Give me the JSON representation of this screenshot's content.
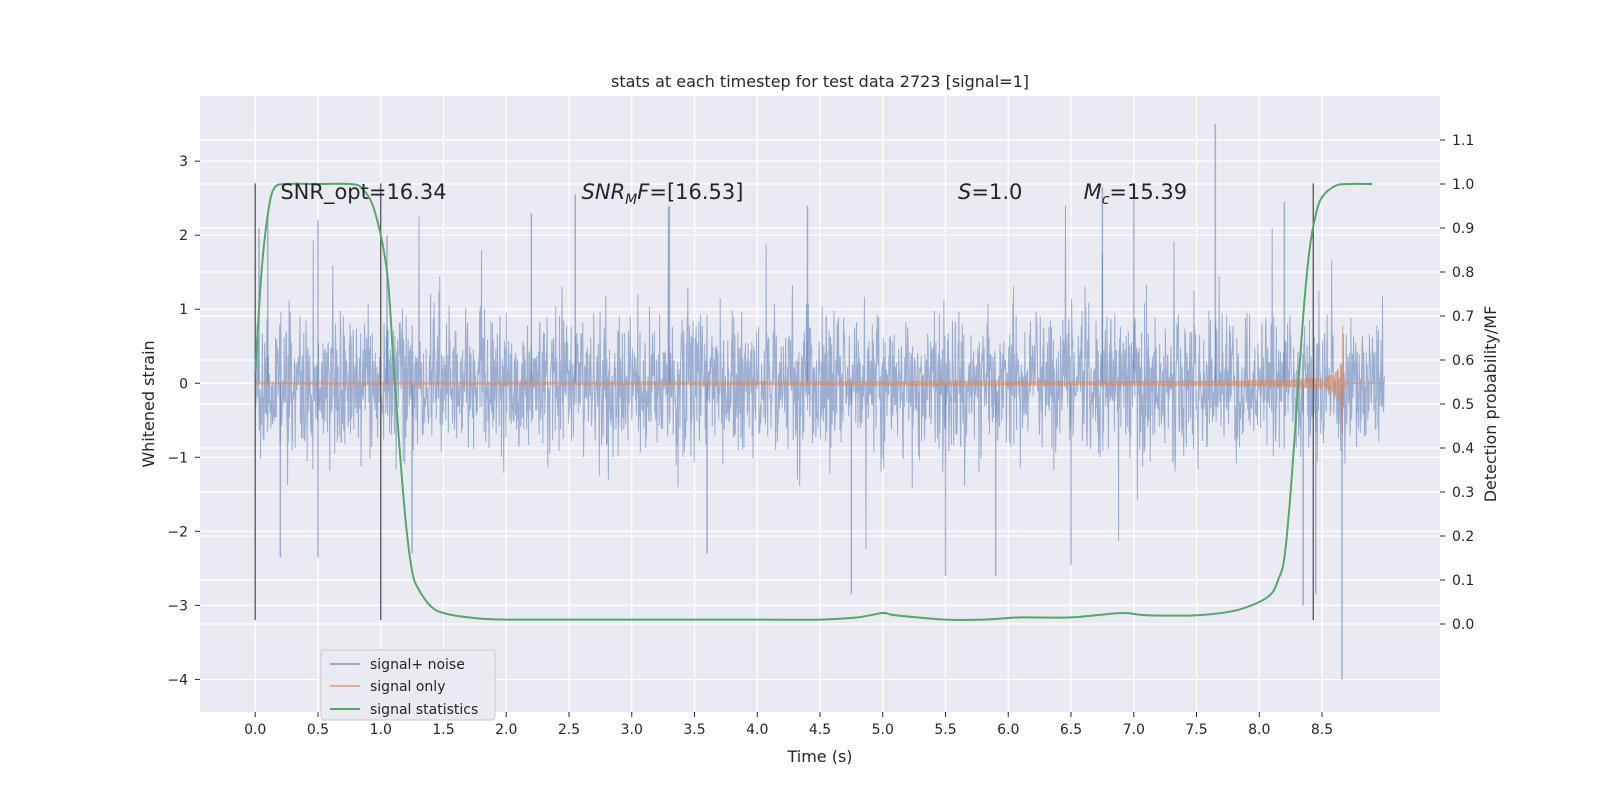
{
  "chart_data": {
    "type": "line",
    "title": "stats at each timestep for test data 2723 [signal=1]",
    "xlabel": "Time (s)",
    "ylabel": "Whitened strain",
    "y2label": "Detection probability/MF",
    "xlim": [
      -0.44,
      9.44
    ],
    "ylim": [
      -4.44,
      3.88
    ],
    "y2lim": [
      -0.2,
      1.2
    ],
    "xticks": [
      0.0,
      0.5,
      1.0,
      1.5,
      2.0,
      2.5,
      3.0,
      3.5,
      4.0,
      4.5,
      5.0,
      5.5,
      6.0,
      6.5,
      7.0,
      7.5,
      8.0,
      8.5
    ],
    "xtick_labels": [
      "0.0",
      "0.5",
      "1.0",
      "1.5",
      "2.0",
      "2.5",
      "3.0",
      "3.5",
      "4.0",
      "4.5",
      "5.0",
      "5.5",
      "6.0",
      "6.5",
      "7.0",
      "7.5",
      "8.0",
      "8.5"
    ],
    "yticks": [
      3,
      2,
      1,
      0,
      -1,
      -2,
      -3,
      -4
    ],
    "ytick_labels": [
      "3",
      "2",
      "1",
      "0",
      "−1",
      "−2",
      "−3",
      "−4"
    ],
    "y2ticks": [
      1.1,
      1.0,
      0.9,
      0.8,
      0.7,
      0.6,
      0.5,
      0.4,
      0.3,
      0.2,
      0.1,
      0.0
    ],
    "y2tick_labels": [
      "1.1",
      "1.0",
      "0.9",
      "0.8",
      "0.7",
      "0.6",
      "0.5",
      "0.4",
      "0.3",
      "0.2",
      "0.1",
      "0.0"
    ],
    "grid": true,
    "legend_position": "lower-left",
    "annotations": [
      {
        "text": "SNR_opt=16.34",
        "x": 0.2,
        "y": 2.65
      },
      {
        "html": "<tspan font-style='italic'>SNR</tspan><tspan font-style='italic' font-size='14' dy='5'>M</tspan><tspan font-style='italic' dy='-5'>F</tspan>=[16.53]",
        "x": 2.6,
        "y": 2.65
      },
      {
        "html": "<tspan font-style='italic'>S</tspan>=1.0",
        "x": 5.6,
        "y": 2.65
      },
      {
        "html": "<tspan font-style='italic'>M</tspan><tspan font-style='italic' font-size='14' dy='5'>c</tspan><tspan dy='-5'>=15.39</tspan>",
        "x": 6.6,
        "y": 2.65
      }
    ],
    "vlines": [
      {
        "x": 0.0,
        "y_from": -3.2,
        "y_to": 2.7
      },
      {
        "x": 1.0,
        "y_from": -3.2,
        "y_to": 2.7
      },
      {
        "x": 8.43,
        "y_from": -3.2,
        "y_to": 2.7
      }
    ],
    "series": [
      {
        "name": "signal+ noise",
        "color": "#4c72b0",
        "alpha": 0.5,
        "x_range": [
          0.0,
          9.0
        ],
        "spikes": [
          {
            "x": 0.03,
            "y": 2.1
          },
          {
            "x": 0.1,
            "y": 2.3
          },
          {
            "x": 0.2,
            "y": -2.35
          },
          {
            "x": 0.5,
            "y": 2.2
          },
          {
            "x": 0.5,
            "y": -2.35
          },
          {
            "x": 1.05,
            "y": 2.0
          },
          {
            "x": 1.25,
            "y": -2.3
          },
          {
            "x": 2.2,
            "y": 2.3
          },
          {
            "x": 2.55,
            "y": 2.55
          },
          {
            "x": 3.3,
            "y": 2.4
          },
          {
            "x": 3.6,
            "y": -2.3
          },
          {
            "x": 4.4,
            "y": 2.4
          },
          {
            "x": 4.75,
            "y": -2.85
          },
          {
            "x": 5.5,
            "y": -2.6
          },
          {
            "x": 5.9,
            "y": -2.6
          },
          {
            "x": 6.5,
            "y": -2.45
          },
          {
            "x": 6.75,
            "y": 2.65
          },
          {
            "x": 7.0,
            "y": 2.55
          },
          {
            "x": 7.65,
            "y": 3.5
          },
          {
            "x": 8.2,
            "y": 2.45
          },
          {
            "x": 8.35,
            "y": -3.0
          },
          {
            "x": 8.45,
            "y": -2.85
          },
          {
            "x": 8.66,
            "y": -4.0
          }
        ]
      },
      {
        "name": "signal only",
        "color": "#dd8452",
        "alpha": 0.6,
        "x_range": [
          0.0,
          9.0
        ],
        "merger_time": 8.66
      },
      {
        "name": "signal statistics",
        "color": "#55a868",
        "axis": "right",
        "points": [
          [
            0.0,
            0.57
          ],
          [
            0.05,
            0.8
          ],
          [
            0.1,
            0.93
          ],
          [
            0.15,
            0.99
          ],
          [
            0.25,
            1.0
          ],
          [
            0.5,
            1.0
          ],
          [
            0.75,
            1.0
          ],
          [
            0.85,
            0.99
          ],
          [
            0.95,
            0.94
          ],
          [
            1.05,
            0.8
          ],
          [
            1.1,
            0.6
          ],
          [
            1.15,
            0.4
          ],
          [
            1.2,
            0.23
          ],
          [
            1.25,
            0.12
          ],
          [
            1.3,
            0.08
          ],
          [
            1.4,
            0.04
          ],
          [
            1.5,
            0.025
          ],
          [
            1.7,
            0.015
          ],
          [
            2.0,
            0.01
          ],
          [
            3.0,
            0.01
          ],
          [
            4.0,
            0.01
          ],
          [
            4.5,
            0.01
          ],
          [
            4.8,
            0.015
          ],
          [
            5.0,
            0.025
          ],
          [
            5.1,
            0.02
          ],
          [
            5.5,
            0.01
          ],
          [
            5.8,
            0.01
          ],
          [
            6.1,
            0.015
          ],
          [
            6.5,
            0.015
          ],
          [
            6.9,
            0.025
          ],
          [
            7.1,
            0.02
          ],
          [
            7.5,
            0.02
          ],
          [
            7.8,
            0.03
          ],
          [
            8.0,
            0.05
          ],
          [
            8.1,
            0.07
          ],
          [
            8.15,
            0.1
          ],
          [
            8.2,
            0.15
          ],
          [
            8.25,
            0.3
          ],
          [
            8.3,
            0.5
          ],
          [
            8.35,
            0.7
          ],
          [
            8.4,
            0.85
          ],
          [
            8.45,
            0.93
          ],
          [
            8.5,
            0.97
          ],
          [
            8.6,
            0.995
          ],
          [
            8.7,
            1.0
          ],
          [
            8.9,
            1.0
          ]
        ]
      }
    ]
  }
}
